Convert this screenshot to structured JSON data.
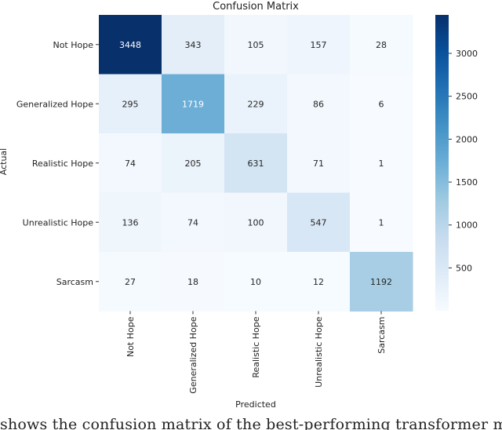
{
  "chart_data": {
    "type": "heatmap",
    "title": "Confusion Matrix",
    "xlabel": "Predicted",
    "ylabel": "Actual",
    "row_labels": [
      "Not Hope",
      "Generalized Hope",
      "Realistic Hope",
      "Unrealistic Hope",
      "Sarcasm"
    ],
    "col_labels": [
      "Not Hope",
      "Generalized Hope",
      "Realistic Hope",
      "Unrealistic Hope",
      "Sarcasm"
    ],
    "values": [
      [
        3448,
        343,
        105,
        157,
        28
      ],
      [
        295,
        1719,
        229,
        86,
        6
      ],
      [
        74,
        205,
        631,
        71,
        1
      ],
      [
        136,
        74,
        100,
        547,
        1
      ],
      [
        27,
        18,
        10,
        12,
        1192
      ]
    ],
    "colorbar": {
      "min": 1,
      "max": 3448,
      "ticks": [
        500,
        1000,
        1500,
        2000,
        2500,
        3000
      ],
      "colormap": "Blues"
    }
  },
  "caption": "shows the confusion matrix of the best-performing transformer model"
}
